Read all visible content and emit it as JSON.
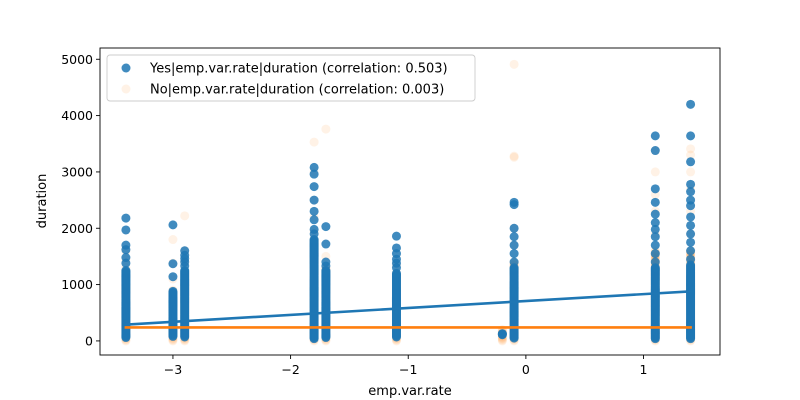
{
  "chart_data": {
    "type": "scatter",
    "title": "",
    "xlabel": "emp.var.rate",
    "ylabel": "duration",
    "xlim": [
      -3.62,
      1.65
    ],
    "ylim": [
      -250,
      5200
    ],
    "xticks": [
      -3,
      -2,
      -1,
      0,
      1
    ],
    "yticks": [
      0,
      1000,
      2000,
      3000,
      4000,
      5000
    ],
    "grid": false,
    "legend_position": "top-left",
    "x_categories": [
      -3.4,
      -3.0,
      -2.9,
      -1.8,
      -1.7,
      -1.1,
      -0.2,
      -0.1,
      1.1,
      1.4
    ],
    "series": [
      {
        "name": "Yes|emp.var.rate|duration (correlation: 0.503)",
        "color": "#1f77b4",
        "alpha": 0.85,
        "columns": [
          {
            "x": -3.4,
            "min": 60,
            "max": 1250,
            "outliers": [
              1380,
              1480,
              1620,
              1700,
              1970,
              2180
            ]
          },
          {
            "x": -3.0,
            "min": 80,
            "max": 880,
            "outliers": [
              1140,
              1370,
              2060
            ]
          },
          {
            "x": -2.9,
            "min": 70,
            "max": 1250,
            "outliers": [
              1330,
              1400,
              1460,
              1520,
              1600
            ]
          },
          {
            "x": -1.8,
            "min": 40,
            "max": 1800,
            "outliers": [
              1900,
              1980,
              2150,
              2300,
              2500,
              2740,
              2960,
              3080
            ]
          },
          {
            "x": -1.7,
            "min": 60,
            "max": 1250,
            "outliers": [
              1330,
              1400,
              1720,
              2030
            ]
          },
          {
            "x": -1.1,
            "min": 70,
            "max": 1200,
            "outliers": [
              1300,
              1380,
              1450,
              1550,
              1650,
              1860
            ]
          },
          {
            "x": -0.2,
            "min": 110,
            "max": 130,
            "outliers": []
          },
          {
            "x": -0.1,
            "min": 50,
            "max": 1300,
            "outliers": [
              1400,
              1550,
              1700,
              1850,
              2000,
              2420,
              2460
            ]
          },
          {
            "x": 1.1,
            "min": 40,
            "max": 1300,
            "outliers": [
              1400,
              1550,
              1700,
              1850,
              1980,
              2100,
              2250,
              2460,
              2700,
              3380,
              3640
            ]
          },
          {
            "x": 1.4,
            "min": 40,
            "max": 1350,
            "outliers": [
              1450,
              1600,
              1750,
              1900,
              2050,
              2200,
              2400,
              2500,
              2650,
              2780,
              3180,
              3640,
              4200
            ]
          }
        ],
        "regression": {
          "x": [
            -3.4,
            1.4
          ],
          "y": [
            290,
            880
          ]
        }
      },
      {
        "name": "No|emp.var.rate|duration (correlation: 0.003)",
        "color": "#ff7f0e",
        "alpha": 0.1,
        "columns": [
          {
            "x": -3.4,
            "min": 0,
            "max": 1000,
            "outliers": [
              1150,
              1300,
              1450,
              1600
            ]
          },
          {
            "x": -3.0,
            "min": 0,
            "max": 900,
            "outliers": [
              1100,
              1380,
              1800
            ]
          },
          {
            "x": -2.9,
            "min": 0,
            "max": 1000,
            "outliers": [
              1200,
              1400,
              1600,
              2220
            ]
          },
          {
            "x": -1.8,
            "min": 0,
            "max": 1800,
            "outliers": [
              1950,
              2200,
              2500,
              3000,
              3530
            ]
          },
          {
            "x": -1.7,
            "min": 0,
            "max": 1300,
            "outliers": [
              1500,
              3760
            ]
          },
          {
            "x": -1.1,
            "min": 0,
            "max": 1200,
            "outliers": [
              1350
            ]
          },
          {
            "x": -0.2,
            "min": 0,
            "max": 200,
            "outliers": []
          },
          {
            "x": -0.1,
            "min": 0,
            "max": 1400,
            "outliers": [
              1700,
              2000,
              3260,
              3280,
              4910
            ]
          },
          {
            "x": 1.1,
            "min": 0,
            "max": 1600,
            "outliers": [
              1900,
              2300,
              2600,
              3000,
              3380
            ]
          },
          {
            "x": 1.4,
            "min": 0,
            "max": 1600,
            "outliers": [
              1900,
              2300,
              2700,
              3000,
              3300,
              3410
            ]
          }
        ],
        "regression": {
          "x": [
            -3.4,
            1.4
          ],
          "y": [
            240,
            240
          ]
        }
      }
    ]
  }
}
